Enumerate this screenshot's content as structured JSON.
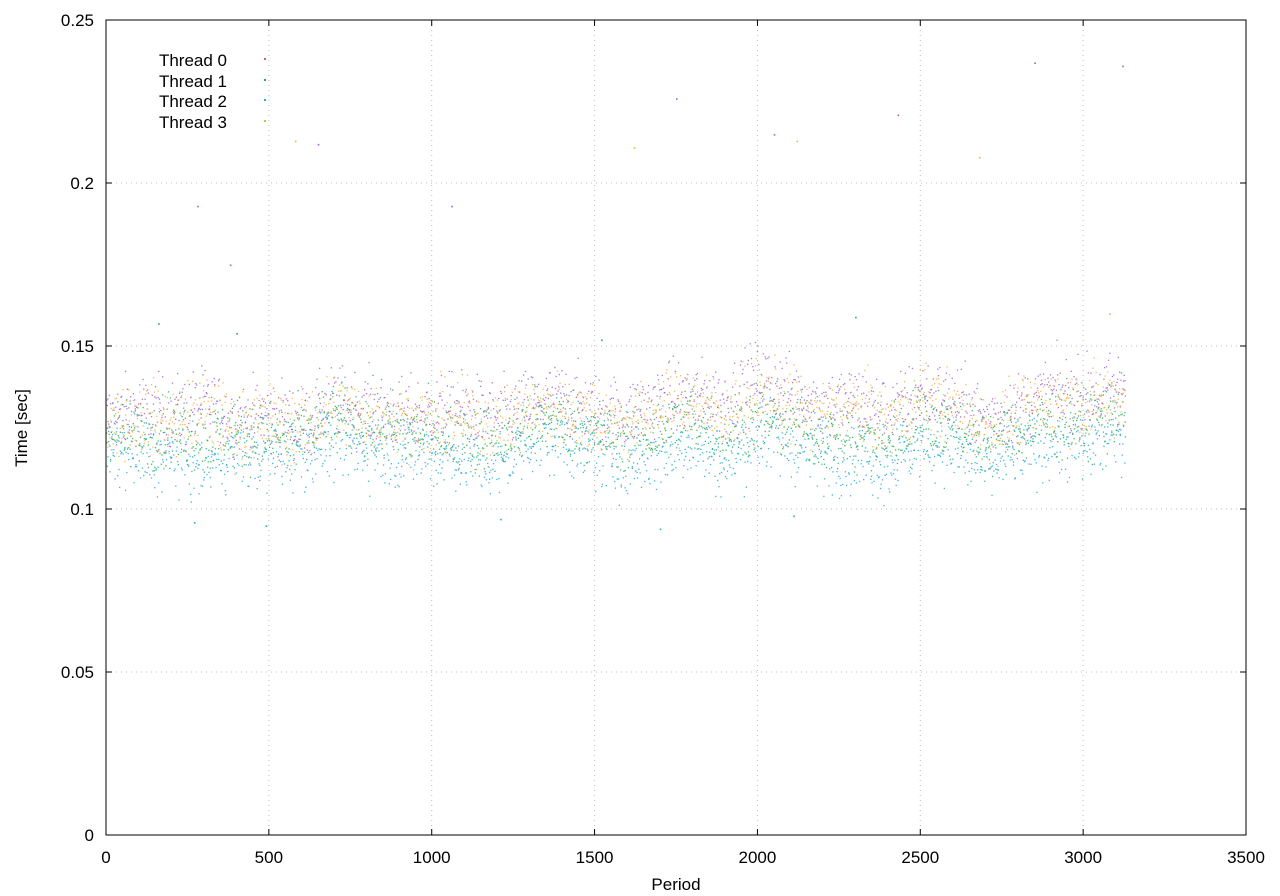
{
  "chart_data": {
    "type": "scatter",
    "title": "",
    "xlabel": "Period",
    "ylabel": "Time [sec]",
    "xlim": [
      0,
      3500
    ],
    "ylim": [
      0,
      0.25
    ],
    "xticks": [
      "0",
      "500",
      "1000",
      "1500",
      "2000",
      "2500",
      "3000",
      "3500"
    ],
    "yticks": [
      "0",
      "0.05",
      "0.1",
      "0.15",
      "0.2",
      "0.25"
    ],
    "grid": true,
    "legend_position": "top-left",
    "series": [
      {
        "name": "Thread 0",
        "color": "#a060d0",
        "points": [
          [
            0,
            0.128
          ],
          [
            100,
            0.131
          ],
          [
            200,
            0.129
          ],
          [
            300,
            0.133
          ],
          [
            400,
            0.127
          ],
          [
            500,
            0.13
          ],
          [
            600,
            0.126
          ],
          [
            700,
            0.133
          ],
          [
            800,
            0.131
          ],
          [
            900,
            0.129
          ],
          [
            1000,
            0.13
          ],
          [
            1100,
            0.131
          ],
          [
            1200,
            0.128
          ],
          [
            1300,
            0.132
          ],
          [
            1400,
            0.134
          ],
          [
            1500,
            0.131
          ],
          [
            1600,
            0.129
          ],
          [
            1700,
            0.134
          ],
          [
            1800,
            0.135
          ],
          [
            1900,
            0.133
          ],
          [
            2000,
            0.141
          ],
          [
            2100,
            0.136
          ],
          [
            2200,
            0.132
          ],
          [
            2300,
            0.134
          ],
          [
            2400,
            0.129
          ],
          [
            2500,
            0.136
          ],
          [
            2600,
            0.133
          ],
          [
            2700,
            0.128
          ],
          [
            2800,
            0.131
          ],
          [
            2900,
            0.136
          ],
          [
            3000,
            0.135
          ],
          [
            3100,
            0.137
          ],
          [
            3130,
            0.139
          ]
        ],
        "outliers": [
          [
            280,
            0.193
          ],
          [
            380,
            0.175
          ],
          [
            650,
            0.212
          ],
          [
            1060,
            0.193
          ],
          [
            1750,
            0.226
          ],
          [
            2050,
            0.215
          ],
          [
            2430,
            0.221
          ],
          [
            2850,
            0.237
          ],
          [
            3120,
            0.236
          ]
        ]
      },
      {
        "name": "Thread 1",
        "color": "#20b050",
        "points": [
          [
            0,
            0.124
          ],
          [
            100,
            0.122
          ],
          [
            200,
            0.125
          ],
          [
            300,
            0.121
          ],
          [
            400,
            0.124
          ],
          [
            500,
            0.122
          ],
          [
            600,
            0.123
          ],
          [
            700,
            0.127
          ],
          [
            800,
            0.126
          ],
          [
            900,
            0.124
          ],
          [
            1000,
            0.123
          ],
          [
            1100,
            0.122
          ],
          [
            1200,
            0.121
          ],
          [
            1300,
            0.126
          ],
          [
            1400,
            0.127
          ],
          [
            1500,
            0.123
          ],
          [
            1600,
            0.121
          ],
          [
            1700,
            0.124
          ],
          [
            1800,
            0.128
          ],
          [
            1900,
            0.122
          ],
          [
            2000,
            0.129
          ],
          [
            2100,
            0.126
          ],
          [
            2200,
            0.123
          ],
          [
            2300,
            0.122
          ],
          [
            2400,
            0.121
          ],
          [
            2500,
            0.127
          ],
          [
            2600,
            0.126
          ],
          [
            2700,
            0.12
          ],
          [
            2800,
            0.124
          ],
          [
            2900,
            0.127
          ],
          [
            3000,
            0.126
          ],
          [
            3100,
            0.129
          ],
          [
            3130,
            0.13
          ]
        ],
        "outliers": [
          [
            160,
            0.157
          ],
          [
            400,
            0.154
          ],
          [
            1520,
            0.152
          ],
          [
            2300,
            0.159
          ]
        ]
      },
      {
        "name": "Thread 2",
        "color": "#20a8e0",
        "points": [
          [
            0,
            0.118
          ],
          [
            100,
            0.117
          ],
          [
            200,
            0.116
          ],
          [
            300,
            0.114
          ],
          [
            400,
            0.118
          ],
          [
            500,
            0.116
          ],
          [
            600,
            0.118
          ],
          [
            700,
            0.121
          ],
          [
            800,
            0.119
          ],
          [
            900,
            0.117
          ],
          [
            1000,
            0.118
          ],
          [
            1100,
            0.116
          ],
          [
            1200,
            0.113
          ],
          [
            1300,
            0.121
          ],
          [
            1400,
            0.122
          ],
          [
            1500,
            0.117
          ],
          [
            1600,
            0.115
          ],
          [
            1700,
            0.117
          ],
          [
            1800,
            0.121
          ],
          [
            1900,
            0.114
          ],
          [
            2000,
            0.123
          ],
          [
            2100,
            0.12
          ],
          [
            2200,
            0.117
          ],
          [
            2300,
            0.116
          ],
          [
            2400,
            0.114
          ],
          [
            2500,
            0.121
          ],
          [
            2600,
            0.119
          ],
          [
            2700,
            0.113
          ],
          [
            2800,
            0.118
          ],
          [
            2900,
            0.121
          ],
          [
            3000,
            0.12
          ],
          [
            3100,
            0.123
          ],
          [
            3130,
            0.124
          ]
        ],
        "outliers": [
          [
            270,
            0.096
          ],
          [
            490,
            0.095
          ],
          [
            1210,
            0.097
          ],
          [
            1700,
            0.094
          ],
          [
            2110,
            0.098
          ]
        ]
      },
      {
        "name": "Thread 3",
        "color": "#f0b040",
        "points": [
          [
            0,
            0.126
          ],
          [
            100,
            0.128
          ],
          [
            200,
            0.127
          ],
          [
            300,
            0.13
          ],
          [
            400,
            0.125
          ],
          [
            500,
            0.127
          ],
          [
            600,
            0.125
          ],
          [
            700,
            0.131
          ],
          [
            800,
            0.129
          ],
          [
            900,
            0.127
          ],
          [
            1000,
            0.127
          ],
          [
            1100,
            0.128
          ],
          [
            1200,
            0.125
          ],
          [
            1300,
            0.13
          ],
          [
            1400,
            0.131
          ],
          [
            1500,
            0.128
          ],
          [
            1600,
            0.126
          ],
          [
            1700,
            0.13
          ],
          [
            1800,
            0.133
          ],
          [
            1900,
            0.129
          ],
          [
            2000,
            0.135
          ],
          [
            2100,
            0.132
          ],
          [
            2200,
            0.129
          ],
          [
            2300,
            0.131
          ],
          [
            2400,
            0.127
          ],
          [
            2500,
            0.133
          ],
          [
            2600,
            0.131
          ],
          [
            2700,
            0.125
          ],
          [
            2800,
            0.129
          ],
          [
            2900,
            0.133
          ],
          [
            3000,
            0.132
          ],
          [
            3100,
            0.134
          ],
          [
            3130,
            0.136
          ]
        ],
        "outliers": [
          [
            580,
            0.213
          ],
          [
            1620,
            0.211
          ],
          [
            2120,
            0.213
          ],
          [
            2680,
            0.208
          ],
          [
            3080,
            0.16
          ]
        ]
      }
    ]
  }
}
